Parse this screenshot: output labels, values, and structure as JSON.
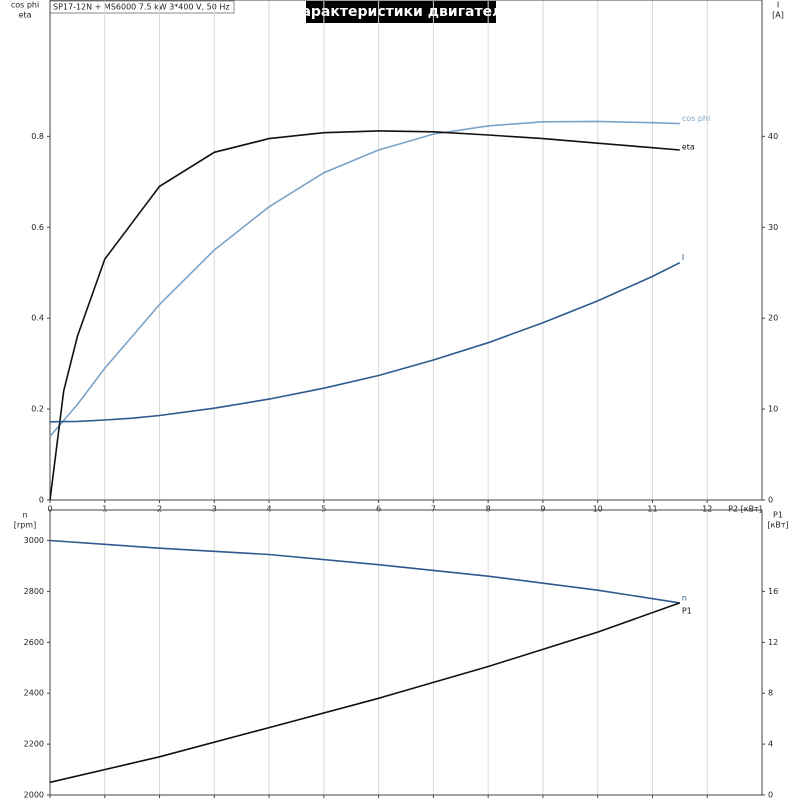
{
  "chart_data": [
    {
      "type": "line",
      "title": "Характеристики двигателя",
      "subtitle": "SP17-12N + MS6000   7.5 kW   3*400 V, 50 Hz",
      "ylabel": [
        "cos phi",
        "eta"
      ],
      "y2label": [
        "I",
        "[A]"
      ],
      "xlabel": "P2 [кВт]",
      "x": [
        0,
        0.25,
        0.5,
        1,
        1.5,
        2,
        3,
        4,
        5,
        6,
        7,
        8,
        9,
        10,
        11,
        11.5
      ],
      "xlim": [
        0,
        13
      ],
      "xticks": [
        0,
        1,
        2,
        3,
        4,
        5,
        6,
        7,
        8,
        9,
        10,
        11,
        12
      ],
      "ylim": [
        0,
        1.1
      ],
      "yticks": [
        {
          "value": 0,
          "label": "0"
        },
        {
          "value": 0.2,
          "label": "0.2"
        },
        {
          "value": 0.4,
          "label": "0.4"
        },
        {
          "value": 0.6,
          "label": "0.6"
        },
        {
          "value": 0.8,
          "label": "0.8"
        }
      ],
      "y2lim": [
        0,
        55
      ],
      "y2ticks": [
        0,
        10,
        20,
        30,
        40
      ],
      "grid": "x",
      "series": [
        {
          "name": "cos phi",
          "color": "#7ba3c8",
          "values": [
            0.14,
            0.175,
            0.21,
            0.29,
            0.36,
            0.43,
            0.55,
            0.645,
            0.72,
            0.77,
            0.805,
            0.823,
            0.832,
            0.833,
            0.83,
            0.828
          ]
        },
        {
          "name": "eta",
          "color": "#111111",
          "values": [
            0,
            0.24,
            0.36,
            0.53,
            0.61,
            0.69,
            0.765,
            0.795,
            0.808,
            0.812,
            0.81,
            0.803,
            0.795,
            0.785,
            0.775,
            0.77
          ]
        },
        {
          "name": "I",
          "color": "#2c5a8c",
          "axis": "y2",
          "values": [
            8.6,
            8.62,
            8.65,
            8.8,
            9.0,
            9.3,
            10.1,
            11.1,
            12.3,
            13.7,
            15.4,
            17.3,
            19.5,
            21.9,
            24.6,
            26.1
          ]
        }
      ]
    },
    {
      "type": "line",
      "ylabel": [
        "n",
        "[rpm]"
      ],
      "y2label": [
        "P1",
        "[кВт]"
      ],
      "x": [
        0,
        2,
        4,
        6,
        8,
        10,
        11.5
      ],
      "xlim": [
        0,
        13
      ],
      "xticks": [
        0,
        1,
        2,
        3,
        4,
        5,
        6,
        7,
        8,
        9,
        10,
        11,
        12
      ],
      "ylim": [
        2000,
        3120
      ],
      "yticks": [
        2000,
        2200,
        2400,
        2600,
        2800,
        3000
      ],
      "y2lim": [
        0,
        22.4
      ],
      "y2ticks": [
        0,
        4,
        8,
        12,
        16
      ],
      "grid": "x",
      "series": [
        {
          "name": "n",
          "color": "#2c5a8c",
          "values": [
            3000,
            2970,
            2945,
            2905,
            2860,
            2805,
            2755
          ]
        },
        {
          "name": "P1",
          "color": "#111111",
          "axis": "y2",
          "values": [
            1.0,
            3.0,
            5.3,
            7.6,
            10.1,
            12.8,
            15.1
          ]
        }
      ]
    }
  ]
}
